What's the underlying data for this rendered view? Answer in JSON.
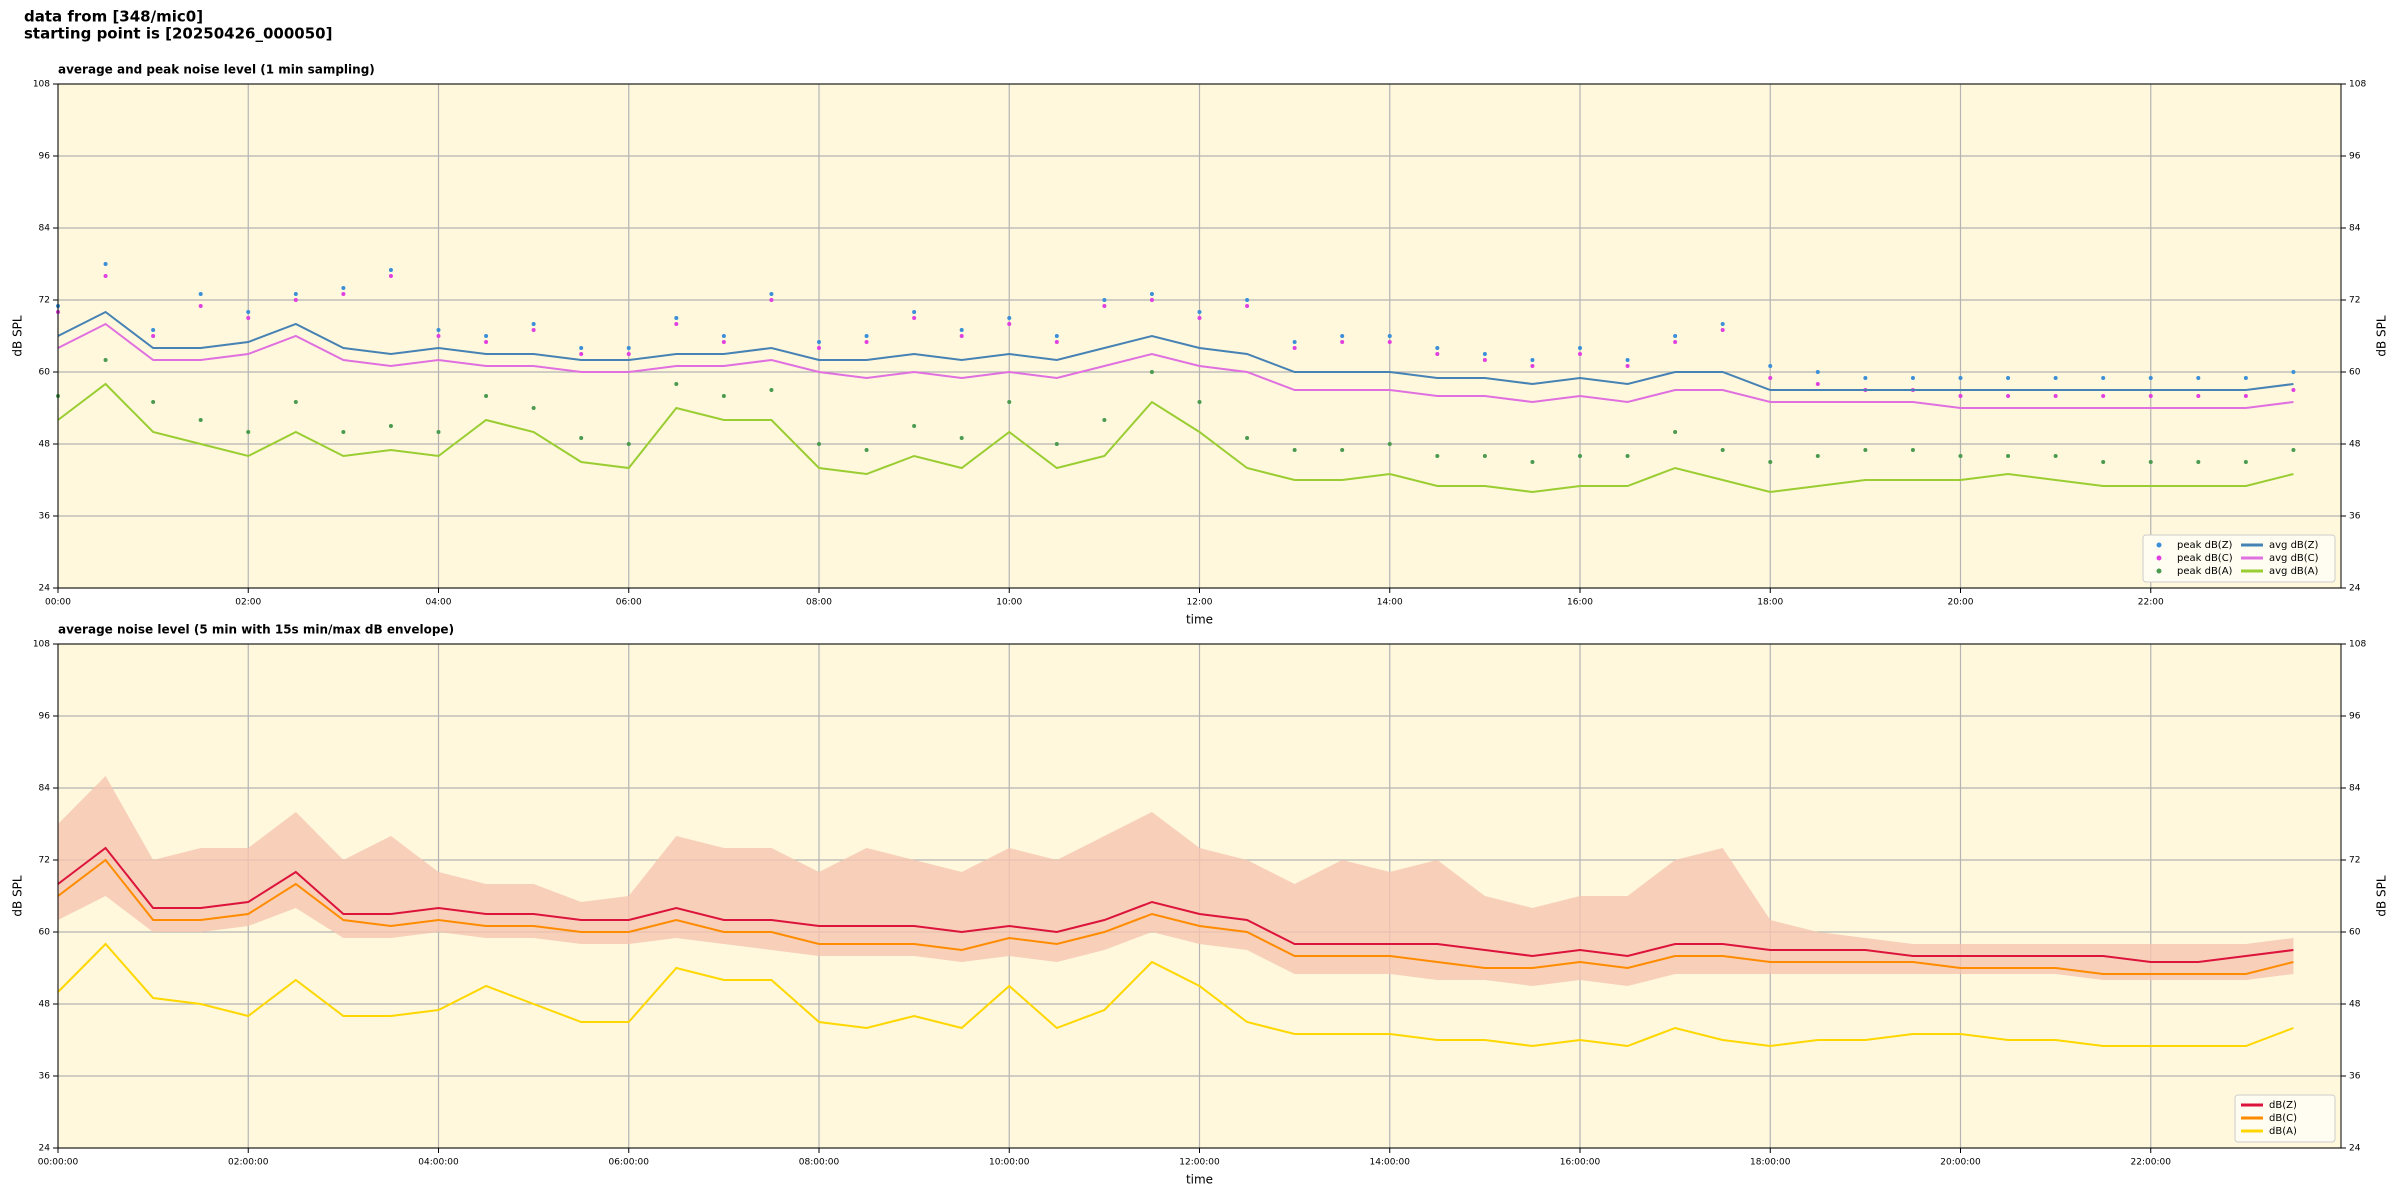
{
  "header": {
    "line1": "data from [348/mic0]",
    "line2": "starting point is [20250426_000050]"
  },
  "chart_data": [
    {
      "type": "line",
      "title": "average and peak noise level (1 min sampling)",
      "x_label": "time",
      "y_label": "dB SPL",
      "y2_label": "dB SPL",
      "background": "#fff8dc",
      "grid": true,
      "legend": "lower right",
      "legend_columns": 2,
      "xlim": [
        0,
        24
      ],
      "xticks": [
        {
          "value": 0,
          "label": "00:00"
        },
        {
          "value": 2,
          "label": "02:00"
        },
        {
          "value": 4,
          "label": "04:00"
        },
        {
          "value": 6,
          "label": "06:00"
        },
        {
          "value": 8,
          "label": "08:00"
        },
        {
          "value": 10,
          "label": "10:00"
        },
        {
          "value": 12,
          "label": "12:00"
        },
        {
          "value": 14,
          "label": "14:00"
        },
        {
          "value": 16,
          "label": "16:00"
        },
        {
          "value": 18,
          "label": "18:00"
        },
        {
          "value": 20,
          "label": "20:00"
        },
        {
          "value": 22,
          "label": "22:00"
        }
      ],
      "ylim": [
        24,
        108
      ],
      "yticks": [
        24,
        36,
        48,
        60,
        72,
        84,
        96,
        108
      ],
      "y2lim": [
        24,
        108
      ],
      "y2ticks": [
        24,
        36,
        48,
        60,
        72,
        84,
        96,
        108
      ],
      "x": [
        0,
        0.5,
        1,
        1.5,
        2,
        2.5,
        3,
        3.5,
        4,
        4.5,
        5,
        5.5,
        6,
        6.5,
        7,
        7.5,
        8,
        8.5,
        9,
        9.5,
        10,
        10.5,
        11,
        11.5,
        12,
        12.5,
        13,
        13.5,
        14,
        14.5,
        15,
        15.5,
        16,
        16.5,
        17,
        17.5,
        18,
        18.5,
        19,
        19.5,
        20,
        20.5,
        21,
        21.5,
        22,
        22.5,
        23,
        23.5
      ],
      "series": [
        {
          "name": "peak dB(Z)",
          "kind": "scatter",
          "color": "#3a8fd8",
          "values": [
            71,
            78,
            67,
            73,
            70,
            73,
            74,
            77,
            67,
            66,
            68,
            64,
            64,
            69,
            66,
            73,
            65,
            66,
            70,
            67,
            69,
            66,
            72,
            73,
            70,
            72,
            65,
            66,
            66,
            64,
            63,
            62,
            64,
            62,
            66,
            68,
            61,
            60,
            59,
            59,
            59,
            59,
            59,
            59,
            59,
            59,
            59,
            60
          ]
        },
        {
          "name": "peak dB(C)",
          "kind": "scatter",
          "color": "#e040e0",
          "values": [
            70,
            76,
            66,
            71,
            69,
            72,
            73,
            76,
            66,
            65,
            67,
            63,
            63,
            68,
            65,
            72,
            64,
            65,
            69,
            66,
            68,
            65,
            71,
            72,
            69,
            71,
            64,
            65,
            65,
            63,
            62,
            61,
            63,
            61,
            65,
            67,
            59,
            58,
            57,
            57,
            56,
            56,
            56,
            56,
            56,
            56,
            56,
            57
          ]
        },
        {
          "name": "peak dB(A)",
          "kind": "scatter",
          "color": "#4a9a50",
          "values": [
            56,
            62,
            55,
            52,
            50,
            55,
            50,
            51,
            50,
            56,
            54,
            49,
            48,
            58,
            56,
            57,
            48,
            47,
            51,
            49,
            55,
            48,
            52,
            60,
            55,
            49,
            47,
            47,
            48,
            46,
            46,
            45,
            46,
            46,
            50,
            47,
            45,
            46,
            47,
            47,
            46,
            46,
            46,
            45,
            45,
            45,
            45,
            47
          ]
        },
        {
          "name": "avg dB(Z)",
          "kind": "line",
          "color": "#4682b4",
          "values": [
            66,
            70,
            64,
            64,
            65,
            68,
            64,
            63,
            64,
            63,
            63,
            62,
            62,
            63,
            63,
            64,
            62,
            62,
            63,
            62,
            63,
            62,
            64,
            66,
            64,
            63,
            60,
            60,
            60,
            59,
            59,
            58,
            59,
            58,
            60,
            60,
            57,
            57,
            57,
            57,
            57,
            57,
            57,
            57,
            57,
            57,
            57,
            58
          ]
        },
        {
          "name": "avg dB(C)",
          "kind": "line",
          "color": "#e070e0",
          "values": [
            64,
            68,
            62,
            62,
            63,
            66,
            62,
            61,
            62,
            61,
            61,
            60,
            60,
            61,
            61,
            62,
            60,
            59,
            60,
            59,
            60,
            59,
            61,
            63,
            61,
            60,
            57,
            57,
            57,
            56,
            56,
            55,
            56,
            55,
            57,
            57,
            55,
            55,
            55,
            55,
            54,
            54,
            54,
            54,
            54,
            54,
            54,
            55
          ]
        },
        {
          "name": "avg dB(A)",
          "kind": "line",
          "color": "#9acd32",
          "values": [
            52,
            58,
            50,
            48,
            46,
            50,
            46,
            47,
            46,
            52,
            50,
            45,
            44,
            54,
            52,
            52,
            44,
            43,
            46,
            44,
            50,
            44,
            46,
            55,
            50,
            44,
            42,
            42,
            43,
            41,
            41,
            40,
            41,
            41,
            44,
            42,
            40,
            41,
            42,
            42,
            42,
            43,
            42,
            41,
            41,
            41,
            41,
            43
          ]
        }
      ]
    },
    {
      "type": "line",
      "title": "average noise level (5 min with 15s min/max dB envelope)",
      "x_label": "time",
      "y_label": "dB SPL",
      "y2_label": "dB SPL",
      "background": "#fff8dc",
      "grid": true,
      "legend": "lower right",
      "legend_columns": 1,
      "xlim": [
        0,
        24
      ],
      "xticks": [
        {
          "value": 0,
          "label": "00:00:00"
        },
        {
          "value": 2,
          "label": "02:00:00"
        },
        {
          "value": 4,
          "label": "04:00:00"
        },
        {
          "value": 6,
          "label": "06:00:00"
        },
        {
          "value": 8,
          "label": "08:00:00"
        },
        {
          "value": 10,
          "label": "10:00:00"
        },
        {
          "value": 12,
          "label": "12:00:00"
        },
        {
          "value": 14,
          "label": "14:00:00"
        },
        {
          "value": 16,
          "label": "16:00:00"
        },
        {
          "value": 18,
          "label": "18:00:00"
        },
        {
          "value": 20,
          "label": "20:00:00"
        },
        {
          "value": 22,
          "label": "22:00:00"
        }
      ],
      "ylim": [
        24,
        108
      ],
      "yticks": [
        24,
        36,
        48,
        60,
        72,
        84,
        96,
        108
      ],
      "y2lim": [
        24,
        108
      ],
      "y2ticks": [
        24,
        36,
        48,
        60,
        72,
        84,
        96,
        108
      ],
      "x": [
        0,
        0.5,
        1,
        1.5,
        2,
        2.5,
        3,
        3.5,
        4,
        4.5,
        5,
        5.5,
        6,
        6.5,
        7,
        7.5,
        8,
        8.5,
        9,
        9.5,
        10,
        10.5,
        11,
        11.5,
        12,
        12.5,
        13,
        13.5,
        14,
        14.5,
        15,
        15.5,
        16,
        16.5,
        17,
        17.5,
        18,
        18.5,
        19,
        19.5,
        20,
        20.5,
        21,
        21.5,
        22,
        22.5,
        23,
        23.5
      ],
      "envelope": {
        "color": "#f6c4b0",
        "upper": [
          78,
          86,
          72,
          74,
          74,
          80,
          72,
          76,
          70,
          68,
          68,
          65,
          66,
          76,
          74,
          74,
          70,
          74,
          72,
          70,
          74,
          72,
          76,
          80,
          74,
          72,
          68,
          72,
          70,
          72,
          66,
          64,
          66,
          66,
          72,
          74,
          62,
          60,
          59,
          58,
          58,
          58,
          58,
          58,
          58,
          58,
          58,
          59
        ],
        "lower": [
          62,
          66,
          60,
          60,
          61,
          64,
          59,
          59,
          60,
          59,
          59,
          58,
          58,
          59,
          58,
          57,
          56,
          56,
          56,
          55,
          56,
          55,
          57,
          60,
          58,
          57,
          53,
          53,
          53,
          52,
          52,
          51,
          52,
          51,
          53,
          53,
          53,
          53,
          53,
          53,
          53,
          53,
          53,
          52,
          52,
          52,
          52,
          53
        ]
      },
      "series": [
        {
          "name": "dB(Z)",
          "kind": "line",
          "color": "#dc143c",
          "values": [
            68,
            74,
            64,
            64,
            65,
            70,
            63,
            63,
            64,
            63,
            63,
            62,
            62,
            64,
            62,
            62,
            61,
            61,
            61,
            60,
            61,
            60,
            62,
            65,
            63,
            62,
            58,
            58,
            58,
            58,
            57,
            56,
            57,
            56,
            58,
            58,
            57,
            57,
            57,
            56,
            56,
            56,
            56,
            56,
            55,
            55,
            56,
            57
          ]
        },
        {
          "name": "dB(C)",
          "kind": "line",
          "color": "#ff8c00",
          "values": [
            66,
            72,
            62,
            62,
            63,
            68,
            62,
            61,
            62,
            61,
            61,
            60,
            60,
            62,
            60,
            60,
            58,
            58,
            58,
            57,
            59,
            58,
            60,
            63,
            61,
            60,
            56,
            56,
            56,
            55,
            54,
            54,
            55,
            54,
            56,
            56,
            55,
            55,
            55,
            55,
            54,
            54,
            54,
            53,
            53,
            53,
            53,
            55
          ]
        },
        {
          "name": "dB(A)",
          "kind": "line",
          "color": "#ffd700",
          "values": [
            50,
            58,
            49,
            48,
            46,
            52,
            46,
            46,
            47,
            51,
            48,
            45,
            45,
            54,
            52,
            52,
            45,
            44,
            46,
            44,
            51,
            44,
            47,
            55,
            51,
            45,
            43,
            43,
            43,
            42,
            42,
            41,
            42,
            41,
            44,
            42,
            41,
            42,
            42,
            43,
            43,
            42,
            42,
            41,
            41,
            41,
            41,
            44
          ]
        }
      ]
    }
  ]
}
